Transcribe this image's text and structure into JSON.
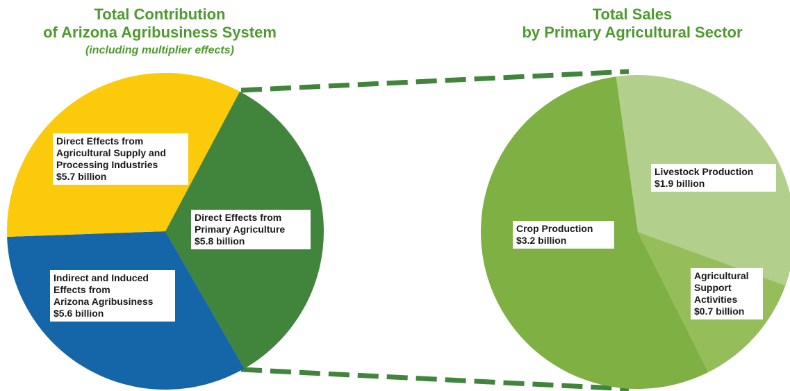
{
  "chart_data": [
    {
      "type": "pie",
      "title": "Total Contribution\nof Arizona Agribusiness System",
      "subtitle": "(including multiplier effects)",
      "slices": [
        {
          "label": "Direct Effects from Primary Agriculture",
          "value_text": "$5.8 billion",
          "value": 5.8,
          "color": "#41843c"
        },
        {
          "label": "Indirect and Induced Effects from Arizona Agribusiness",
          "value_text": "$5.6 billion",
          "value": 5.6,
          "color": "#1565a9"
        },
        {
          "label": "Direct Effects from Agricultural Supply and Processing Industries",
          "value_text": "$5.7 billion",
          "value": 5.7,
          "color": "#fbcb0b"
        }
      ]
    },
    {
      "type": "pie",
      "title": "Total Sales\nby Primary Agricultural Sector",
      "slices": [
        {
          "label": "Livestock Production",
          "value_text": "$1.9 billion",
          "value": 1.9,
          "color": "#b2cf8c"
        },
        {
          "label": "Agricultural Support Activities",
          "value_text": "$0.7 billion",
          "value": 0.7,
          "color": "#95bd5a"
        },
        {
          "label": "Crop Production",
          "value_text": "$3.2 billion",
          "value": 3.2,
          "color": "#7eb043"
        }
      ]
    }
  ],
  "labels": {
    "left_title_1": "Total Contribution",
    "left_title_2": "of Arizona Agribusiness System",
    "left_subtitle": "(including multiplier effects)",
    "right_title_1": "Total Sales",
    "right_title_2": "by Primary Agricultural Sector",
    "primary_1": "Direct Effects from",
    "primary_2": "Primary Agriculture",
    "primary_3": "$5.8 billion",
    "supply_1": "Direct Effects from",
    "supply_2": "Agricultural Supply and",
    "supply_3": "Processing Industries",
    "supply_4": "$5.7 billion",
    "indirect_1": "Indirect and Induced",
    "indirect_2": "Effects from",
    "indirect_3": "Arizona Agribusiness",
    "indirect_4": "$5.6 billion",
    "crop_1": "Crop Production",
    "crop_2": "$3.2 billion",
    "livestock_1": "Livestock Production",
    "livestock_2": "$1.9 billion",
    "support_1": "Agricultural",
    "support_2": "Support",
    "support_3": "Activities",
    "support_4": "$0.7 billion"
  },
  "connector_color": "#41843c"
}
